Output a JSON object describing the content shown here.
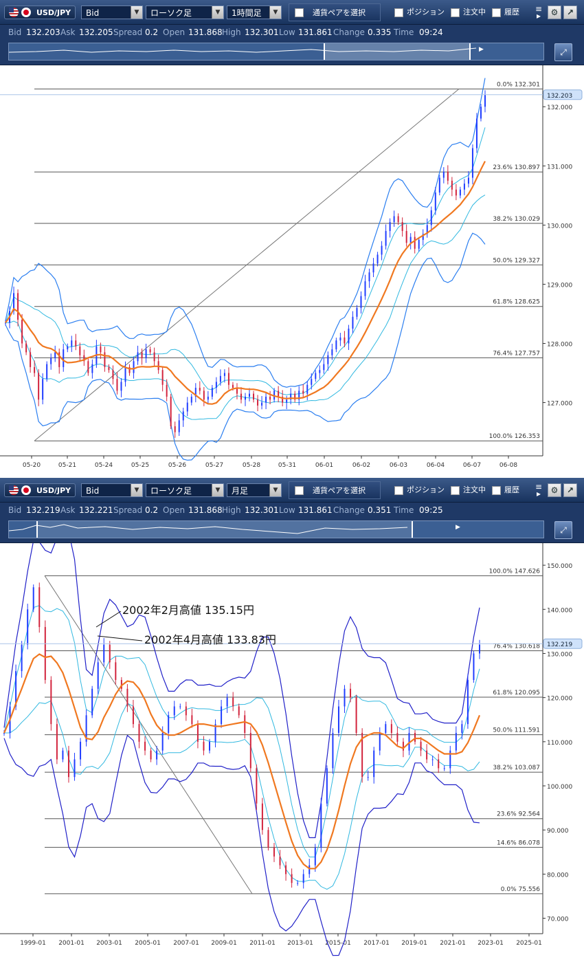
{
  "panels": [
    {
      "toolbar": {
        "pair": "USD/JPY",
        "price_type": "Bid",
        "chart_type": "ローソク足",
        "timeframe": "1時間足",
        "pair_select": "通貨ペアを選択",
        "position": "ポジション",
        "orders": "注文中",
        "history": "履歴"
      },
      "quote": {
        "bid_label": "Bid",
        "bid": "132.203",
        "ask_label": "Ask",
        "ask": "132.205",
        "spread_label": "Spread",
        "spread": "0.2",
        "open_label": "Open",
        "open": "131.868",
        "high_label": "High",
        "high": "132.301",
        "low_label": "Low",
        "low": "131.861",
        "change_label": "Change",
        "change": "0.335",
        "time_label": "Time",
        "time": "09:24"
      },
      "current_price": "132.203"
    },
    {
      "toolbar": {
        "pair": "USD/JPY",
        "price_type": "Bid",
        "chart_type": "ローソク足",
        "timeframe": "月足",
        "pair_select": "通貨ペアを選択",
        "position": "ポジション",
        "orders": "注文中",
        "history": "履歴"
      },
      "quote": {
        "bid_label": "Bid",
        "bid": "132.219",
        "ask_label": "Ask",
        "ask": "132.221",
        "spread_label": "Spread",
        "spread": "0.2",
        "open_label": "Open",
        "open": "131.868",
        "high_label": "High",
        "high": "132.301",
        "low_label": "Low",
        "low": "131.861",
        "change_label": "Change",
        "change": "0.351",
        "time_label": "Time",
        "time": "09:25"
      },
      "current_price": "132.219"
    }
  ],
  "colors": {
    "up_candle": "#1e3cff",
    "down_candle": "#d2233c",
    "ma": "#f07820",
    "band_inner": "#30b8e0",
    "band_outer_hourly": "#2a7ef0",
    "band_outer_monthly": "#2020c8",
    "fib_line": "#555555"
  },
  "chart_data": [
    {
      "type": "candlestick",
      "ylim": [
        126.1,
        132.7
      ],
      "yticks": [
        "132.000",
        "131.000",
        "130.000",
        "129.000",
        "128.000",
        "127.000"
      ],
      "ytick_values": [
        132.0,
        131.0,
        130.0,
        129.0,
        128.0,
        127.0
      ],
      "xticks": [
        "05-20",
        "05-21",
        "05-24",
        "05-25",
        "05-26",
        "05-27",
        "05-28",
        "05-31",
        "06-01",
        "06-02",
        "06-03",
        "06-04",
        "06-07",
        "06-08"
      ],
      "fibonacci": [
        {
          "label": "0.0%",
          "value": "132.301",
          "price": 132.301
        },
        {
          "label": "23.6%",
          "value": "130.897",
          "price": 130.897
        },
        {
          "label": "38.2%",
          "value": "130.029",
          "price": 130.029
        },
        {
          "label": "50.0%",
          "value": "129.327",
          "price": 129.327
        },
        {
          "label": "61.8%",
          "value": "128.625",
          "price": 128.625
        },
        {
          "label": "76.4%",
          "value": "127.757",
          "price": 127.757
        },
        {
          "label": "100.0%",
          "value": "126.353",
          "price": 126.353
        }
      ],
      "close_series": [
        128.35,
        128.55,
        128.85,
        128.4,
        128.0,
        127.85,
        127.6,
        127.5,
        127.05,
        127.4,
        127.65,
        127.75,
        127.85,
        127.6,
        127.9,
        127.95,
        128.05,
        127.95,
        127.8,
        127.7,
        127.5,
        127.65,
        127.95,
        127.85,
        127.6,
        127.55,
        127.4,
        127.2,
        127.35,
        127.6,
        127.5,
        127.7,
        127.85,
        127.75,
        127.9,
        127.85,
        127.7,
        127.55,
        127.3,
        127.1,
        126.6,
        126.5,
        126.7,
        126.85,
        127.0,
        127.1,
        127.25,
        127.2,
        127.05,
        127.1,
        127.25,
        127.35,
        127.45,
        127.5,
        127.3,
        127.25,
        127.15,
        127.05,
        127.1,
        127.15,
        127.05,
        126.95,
        127.0,
        127.1,
        127.05,
        127.2,
        127.1,
        127.0,
        127.05,
        127.15,
        127.05,
        127.2,
        127.15,
        127.3,
        127.4,
        127.5,
        127.55,
        127.65,
        127.8,
        127.9,
        128.05,
        128.1,
        128.0,
        128.25,
        128.45,
        128.6,
        128.8,
        129.05,
        129.2,
        129.35,
        129.5,
        129.65,
        129.9,
        130.05,
        130.15,
        130.05,
        129.9,
        129.7,
        129.8,
        129.6,
        129.75,
        129.85,
        130.0,
        130.25,
        130.55,
        130.8,
        130.9,
        130.75,
        130.6,
        130.5,
        130.6,
        130.7,
        130.8,
        131.3,
        131.8,
        132.0,
        132.2
      ]
    },
    {
      "type": "candlestick",
      "ylim": [
        66.5,
        155
      ],
      "yticks": [
        "150.000",
        "140.000",
        "130.000",
        "120.000",
        "110.000",
        "100.000",
        "90.000",
        "80.000",
        "70.000"
      ],
      "ytick_values": [
        150,
        140,
        130,
        120,
        110,
        100,
        90,
        80,
        70
      ],
      "xticks": [
        "1999-01",
        "2001-01",
        "2003-01",
        "2005-01",
        "2007-01",
        "2009-01",
        "2011-01",
        "2013-01",
        "2015-01",
        "2017-01",
        "2019-01",
        "2021-01",
        "2023-01",
        "2025-01"
      ],
      "fibonacci": [
        {
          "label": "100.0%",
          "value": "147.626",
          "price": 147.626
        },
        {
          "label": "76.4%",
          "value": "130.618",
          "price": 130.618
        },
        {
          "label": "61.8%",
          "value": "120.095",
          "price": 120.095
        },
        {
          "label": "50.0%",
          "value": "111.591",
          "price": 111.591
        },
        {
          "label": "38.2%",
          "value": "103.087",
          "price": 103.087
        },
        {
          "label": "23.6%",
          "value": "92.564",
          "price": 92.564
        },
        {
          "label": "14.6%",
          "value": "86.078",
          "price": 86.078
        },
        {
          "label": "0.0%",
          "value": "75.556",
          "price": 75.556
        }
      ],
      "annotations": [
        "2002年2月高値 135.15円",
        "2002年4月高値 133.83円"
      ],
      "close_series": [
        112,
        118,
        126,
        132,
        140,
        145,
        136,
        124,
        114,
        106,
        108,
        102,
        106,
        110,
        116,
        122,
        128,
        132,
        128,
        124,
        122,
        118,
        114,
        110,
        108,
        106,
        108,
        112,
        116,
        118,
        118,
        116,
        114,
        110,
        108,
        110,
        114,
        118,
        120,
        118,
        116,
        112,
        104,
        96,
        90,
        86,
        84,
        82,
        80,
        78,
        78,
        80,
        82,
        86,
        96,
        104,
        112,
        118,
        122,
        120,
        112,
        102,
        102,
        108,
        112,
        114,
        112,
        110,
        108,
        112,
        110,
        108,
        106,
        106,
        104,
        104,
        108,
        112,
        114,
        124,
        130,
        132
      ]
    }
  ]
}
